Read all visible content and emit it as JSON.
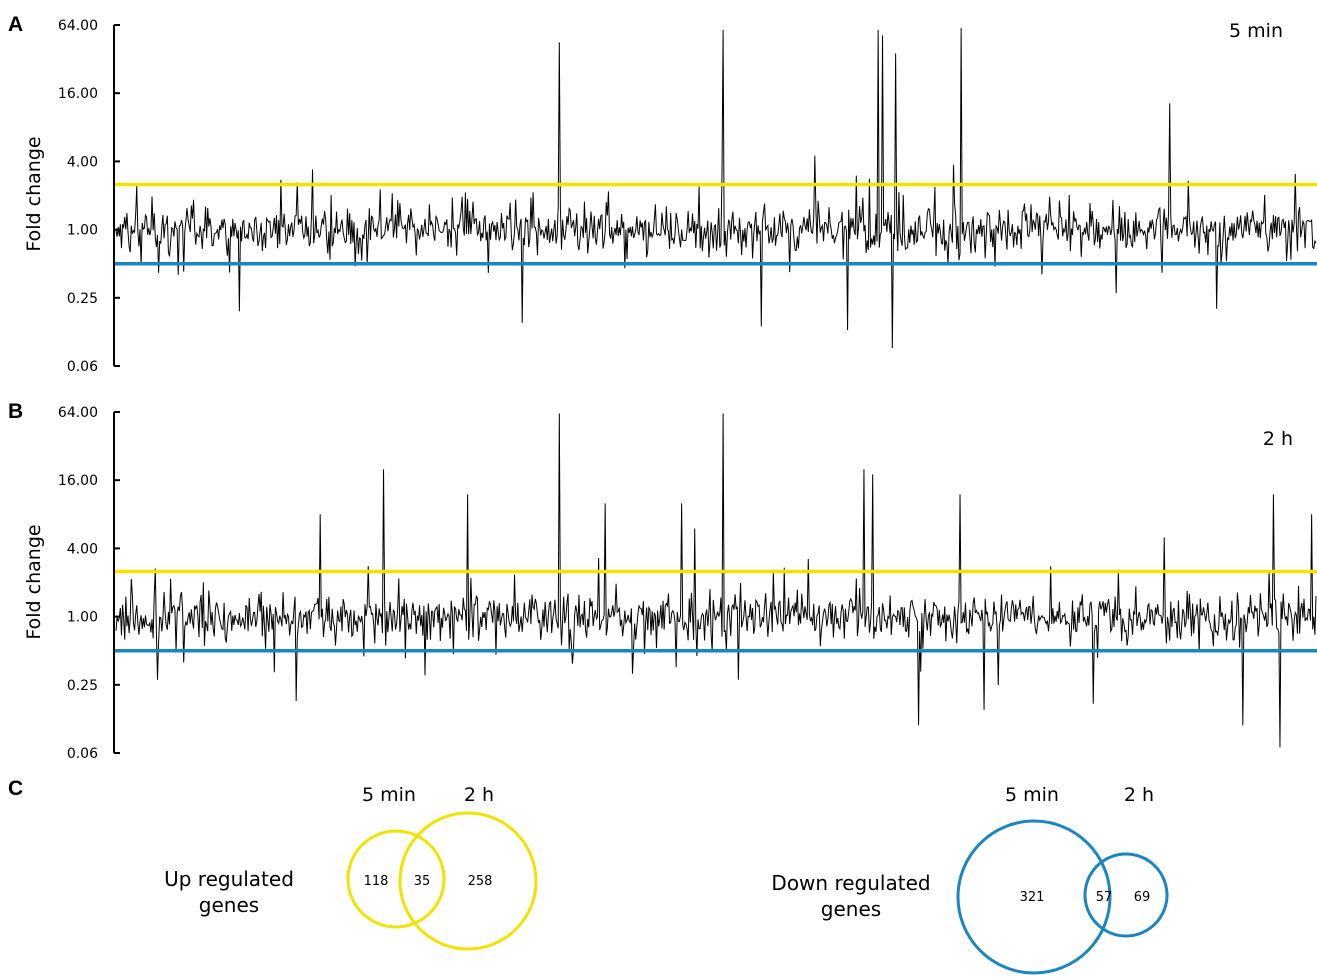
{
  "colors": {
    "up": "#f2e200",
    "down": "#1a86c0",
    "trace": "#000000"
  },
  "chart_data": [
    {
      "type": "line",
      "panel": "A",
      "time_point": "5 min",
      "ylabel": "Fold change",
      "yscale": "log2",
      "ylim": [
        0.0625,
        64
      ],
      "yticks": [
        "0.06",
        "0.25",
        "1.00",
        "4.00",
        "16.00",
        "64.00"
      ],
      "thresholds": {
        "up": 2.5,
        "down": 0.5
      },
      "n_genes": 1100,
      "spikes_up": [
        {
          "index": 406,
          "value": 45
        },
        {
          "index": 556,
          "value": 58
        },
        {
          "index": 698,
          "value": 58
        },
        {
          "index": 702,
          "value": 52
        },
        {
          "index": 714,
          "value": 36
        },
        {
          "index": 774,
          "value": 60
        },
        {
          "index": 965,
          "value": 13
        },
        {
          "index": 180,
          "value": 3.4
        },
        {
          "index": 640,
          "value": 4.5
        },
        {
          "index": 1080,
          "value": 3.1
        }
      ],
      "spikes_down": [
        {
          "index": 372,
          "value": 0.15
        },
        {
          "index": 591,
          "value": 0.14
        },
        {
          "index": 670,
          "value": 0.13
        },
        {
          "index": 711,
          "value": 0.09
        },
        {
          "index": 113,
          "value": 0.19
        },
        {
          "index": 1008,
          "value": 0.2
        }
      ]
    },
    {
      "type": "line",
      "panel": "B",
      "time_point": "2 h",
      "ylabel": "Fold change",
      "yscale": "log2",
      "ylim": [
        0.0625,
        64
      ],
      "yticks": [
        "0.06",
        "0.25",
        "1.00",
        "4.00",
        "16.00",
        "64.00"
      ],
      "thresholds": {
        "up": 2.5,
        "down": 0.5
      },
      "n_genes": 1100,
      "spikes_up": [
        {
          "index": 245,
          "value": 20
        },
        {
          "index": 187,
          "value": 8
        },
        {
          "index": 406,
          "value": 62
        },
        {
          "index": 556,
          "value": 62
        },
        {
          "index": 685,
          "value": 20
        },
        {
          "index": 693,
          "value": 18
        },
        {
          "index": 773,
          "value": 12
        },
        {
          "index": 322,
          "value": 12
        },
        {
          "index": 448,
          "value": 10
        },
        {
          "index": 518,
          "value": 10
        },
        {
          "index": 1060,
          "value": 12
        },
        {
          "index": 1095,
          "value": 8
        },
        {
          "index": 530,
          "value": 6
        },
        {
          "index": 960,
          "value": 5
        }
      ],
      "spikes_down": [
        {
          "index": 165,
          "value": 0.18
        },
        {
          "index": 735,
          "value": 0.11
        },
        {
          "index": 1032,
          "value": 0.11
        },
        {
          "index": 1066,
          "value": 0.07
        },
        {
          "index": 795,
          "value": 0.15
        },
        {
          "index": 895,
          "value": 0.17
        }
      ]
    }
  ],
  "venn": {
    "panel": "C",
    "up": {
      "label_line1": "Up regulated",
      "label_line2": "genes",
      "set1": "5 min",
      "set2": "2 h",
      "only1": "118",
      "both": "35",
      "only2": "258"
    },
    "down": {
      "label_line1": "Down regulated",
      "label_line2": "genes",
      "set1": "5 min",
      "set2": "2 h",
      "only1": "321",
      "both": "57",
      "only2": "69"
    }
  }
}
